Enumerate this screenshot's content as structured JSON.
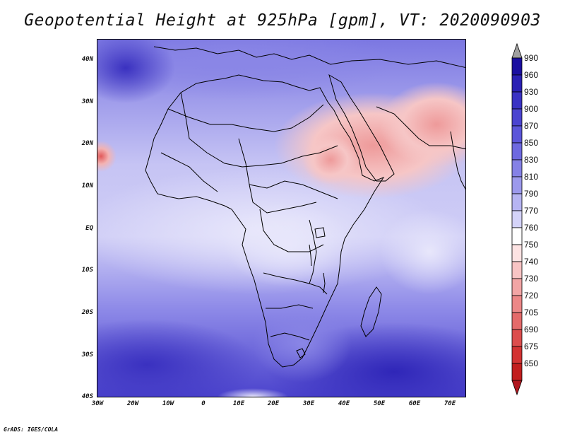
{
  "title": "Geopotential Height at 925hPa [gpm], VT: 2020090903",
  "credit": "GrADS: IGES/COLA",
  "map": {
    "lon_range": [
      -30,
      75
    ],
    "lat_range": [
      -40,
      45
    ],
    "y_ticks": [
      "40N",
      "30N",
      "20N",
      "10N",
      "EQ",
      "10S",
      "20S",
      "30S",
      "40S"
    ],
    "x_ticks": [
      "30W",
      "20W",
      "10W",
      "0",
      "10E",
      "20E",
      "30E",
      "40E",
      "50E",
      "60E",
      "70E"
    ]
  },
  "colorbar": {
    "levels": [
      "990",
      "960",
      "930",
      "900",
      "870",
      "850",
      "830",
      "810",
      "790",
      "770",
      "760",
      "750",
      "740",
      "730",
      "720",
      "705",
      "690",
      "675",
      "650"
    ],
    "colors": [
      "#1a0fa0",
      "#2a20b4",
      "#3a32c4",
      "#4b44d0",
      "#5c56da",
      "#6e69e0",
      "#8581e6",
      "#9c99ec",
      "#b6b4f2",
      "#d4d3f8",
      "#ffffff",
      "#fde3e3",
      "#f8c4c4",
      "#f2a5a5",
      "#ec8787",
      "#e46a6a",
      "#dc4d4d",
      "#d33333",
      "#c21e1e"
    ],
    "over_color": "#a0a0a0",
    "under_color": "#b0171f"
  }
}
